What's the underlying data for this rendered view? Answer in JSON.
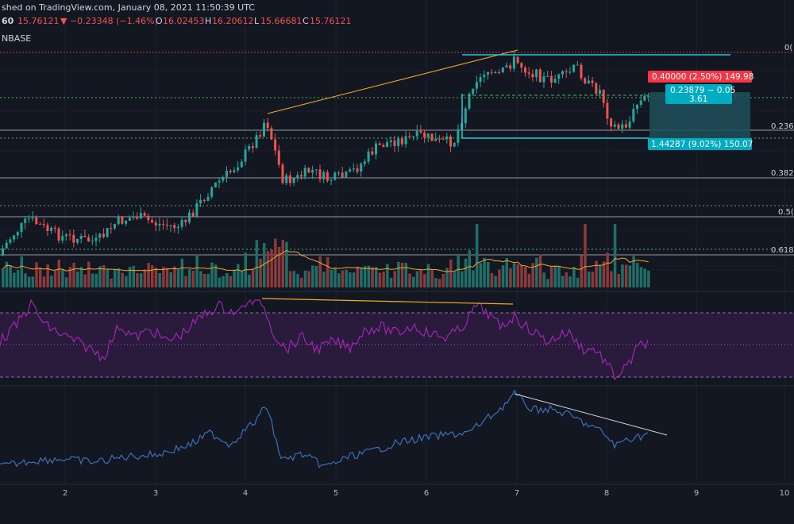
{
  "header": {
    "line1": "shed on TradingView.com, January 08, 2021 11:50:39 UTC",
    "interval": "60",
    "price": "15.76121",
    "change": "▼ −0.23348 (−1.46%)",
    "ohlc": {
      "o_label": "O",
      "o": "16.02453",
      "h_label": "H",
      "h": "16.20612",
      "l_label": "L",
      "l": "15.66681",
      "c_label": "C",
      "c": "15.76121"
    },
    "exchange": "NBASE"
  },
  "fib_labels": [
    {
      "text": "0(",
      "level": 0
    },
    {
      "text": "0.236(",
      "level": 0.236
    },
    {
      "text": "0.382(",
      "level": 0.382
    },
    {
      "text": "0.5(",
      "level": 0.5
    },
    {
      "text": "0.618(",
      "level": 0.618
    }
  ],
  "position": {
    "target": "0.40000 (2.50%) 149.98",
    "center_line1": "0.23879 ~ 0.05",
    "center_line2": "3.61",
    "stop": "1.44287 (9.02%) 150.07"
  },
  "colors": {
    "background": "#131722",
    "up": "#26a69a",
    "down": "#ef5350",
    "rsi": "#9c27b0",
    "rsi_band": "#2a1b3d",
    "obv": "#3d6fb6",
    "trend": "#f5a623",
    "fib": "#9598a1",
    "green_level": "#4caf50",
    "cyan": "#26c6da",
    "target_badge": "#f23645",
    "stop_badge": "#0097a7"
  },
  "chart_data": {
    "type": "candlestick",
    "x_ticks": [
      "2",
      "3",
      "4",
      "5",
      "6",
      "7",
      "8",
      "9",
      "10"
    ],
    "fib_levels": [
      {
        "level": 0,
        "price": 16.45
      },
      {
        "level": 0.236,
        "price": 15.38
      },
      {
        "level": 0.382,
        "price": 14.72
      },
      {
        "level": 0.5,
        "price": 14.18
      },
      {
        "level": 0.618,
        "price": 13.65
      }
    ],
    "indicators": [
      "Volume",
      "RSI",
      "OBV"
    ],
    "grid": true
  }
}
